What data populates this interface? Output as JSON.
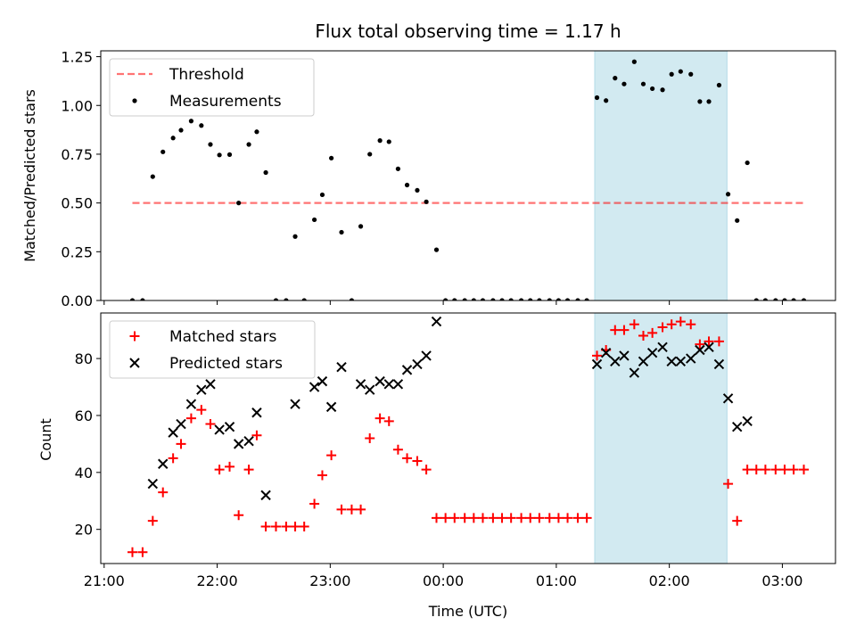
{
  "chart_data": {
    "type": "scatter",
    "title": "Flux total observing time = 1.17 h",
    "xlabel": "Time (UTC)",
    "x_unit": "hours since 21:00 UTC",
    "xlim": [
      -0.03,
      6.47
    ],
    "x_ticks": [
      {
        "value": 0,
        "label": "21:00"
      },
      {
        "value": 1,
        "label": "22:00"
      },
      {
        "value": 2,
        "label": "23:00"
      },
      {
        "value": 3,
        "label": "00:00"
      },
      {
        "value": 4,
        "label": "01:00"
      },
      {
        "value": 5,
        "label": "02:00"
      },
      {
        "value": 6,
        "label": "03:00"
      }
    ],
    "shaded_span": {
      "x0": 4.34,
      "x1": 5.51,
      "color": "#add8e6"
    },
    "panels": [
      {
        "id": "ratio",
        "ylabel": "Matched/Predicted stars",
        "ylim": [
          0,
          1.28
        ],
        "y_ticks": [
          {
            "value": 0,
            "label": "0.00"
          },
          {
            "value": 0.25,
            "label": "0.25"
          },
          {
            "value": 0.5,
            "label": "0.50"
          },
          {
            "value": 0.75,
            "label": "0.75"
          },
          {
            "value": 1.0,
            "label": "1.00"
          },
          {
            "value": 1.25,
            "label": "1.25"
          }
        ],
        "legend": {
          "position": "upper-left",
          "entries": [
            "Threshold",
            "Measurements"
          ]
        },
        "threshold": {
          "name": "Threshold",
          "y": 0.5,
          "x_range": [
            0.25,
            6.2
          ],
          "color": "#ff0000"
        },
        "series": [
          {
            "name": "Measurements",
            "marker": "dot",
            "color": "#000000",
            "points": [
              [
                0.25,
                0
              ],
              [
                0.34,
                0
              ],
              [
                0.43,
                0.635
              ],
              [
                0.52,
                0.762
              ],
              [
                0.61,
                0.833
              ],
              [
                0.68,
                0.873
              ],
              [
                0.77,
                0.92
              ],
              [
                0.86,
                0.897
              ],
              [
                0.94,
                0.8
              ],
              [
                1.02,
                0.746
              ],
              [
                1.11,
                0.748
              ],
              [
                1.19,
                0.5
              ],
              [
                1.28,
                0.8
              ],
              [
                1.35,
                0.865
              ],
              [
                1.43,
                0.656
              ],
              [
                1.52,
                0
              ],
              [
                1.61,
                0
              ],
              [
                1.69,
                0.328
              ],
              [
                1.77,
                0
              ],
              [
                1.86,
                0.414
              ],
              [
                1.93,
                0.542
              ],
              [
                2.01,
                0.73
              ],
              [
                2.1,
                0.35
              ],
              [
                2.19,
                0
              ],
              [
                2.27,
                0.38
              ],
              [
                2.35,
                0.75
              ],
              [
                2.44,
                0.82
              ],
              [
                2.52,
                0.814
              ],
              [
                2.6,
                0.675
              ],
              [
                2.68,
                0.592
              ],
              [
                2.77,
                0.565
              ],
              [
                2.85,
                0.506
              ],
              [
                2.94,
                0.26
              ],
              [
                3.02,
                0
              ],
              [
                3.1,
                0
              ],
              [
                3.19,
                0
              ],
              [
                3.27,
                0
              ],
              [
                3.35,
                0
              ],
              [
                3.44,
                0
              ],
              [
                3.52,
                0
              ],
              [
                3.6,
                0
              ],
              [
                3.69,
                0
              ],
              [
                3.77,
                0
              ],
              [
                3.85,
                0
              ],
              [
                3.94,
                0
              ],
              [
                4.02,
                0
              ],
              [
                4.1,
                0
              ],
              [
                4.19,
                0
              ],
              [
                4.27,
                0
              ],
              [
                4.36,
                1.04
              ],
              [
                4.44,
                1.025
              ],
              [
                4.52,
                1.14
              ],
              [
                4.6,
                1.11
              ],
              [
                4.69,
                1.224
              ],
              [
                4.77,
                1.11
              ],
              [
                4.85,
                1.086
              ],
              [
                4.94,
                1.08
              ],
              [
                5.02,
                1.16
              ],
              [
                5.1,
                1.174
              ],
              [
                5.19,
                1.16
              ],
              [
                5.27,
                1.02
              ],
              [
                5.35,
                1.02
              ],
              [
                5.44,
                1.104
              ],
              [
                5.52,
                0.545
              ],
              [
                5.6,
                0.41
              ],
              [
                5.69,
                0.706
              ],
              [
                5.77,
                0
              ],
              [
                5.85,
                0
              ],
              [
                5.94,
                0
              ],
              [
                6.02,
                0
              ],
              [
                6.1,
                0
              ],
              [
                6.19,
                0
              ]
            ]
          }
        ]
      },
      {
        "id": "counts",
        "ylabel": "Count",
        "ylim": [
          8,
          96
        ],
        "y_ticks": [
          {
            "value": 20,
            "label": "20"
          },
          {
            "value": 40,
            "label": "40"
          },
          {
            "value": 60,
            "label": "60"
          },
          {
            "value": 80,
            "label": "80"
          }
        ],
        "legend": {
          "position": "upper-left",
          "entries": [
            "Matched stars",
            "Predicted stars"
          ]
        },
        "series": [
          {
            "name": "Matched stars",
            "marker": "plus",
            "color": "#ff0000",
            "points": [
              [
                0.25,
                12
              ],
              [
                0.34,
                12
              ],
              [
                0.43,
                23
              ],
              [
                0.52,
                33
              ],
              [
                0.61,
                45
              ],
              [
                0.68,
                50
              ],
              [
                0.77,
                59
              ],
              [
                0.86,
                62
              ],
              [
                0.94,
                57
              ],
              [
                1.02,
                41
              ],
              [
                1.11,
                42
              ],
              [
                1.19,
                25
              ],
              [
                1.28,
                41
              ],
              [
                1.35,
                53
              ],
              [
                1.43,
                21
              ],
              [
                1.52,
                21
              ],
              [
                1.61,
                21
              ],
              [
                1.69,
                21
              ],
              [
                1.77,
                21
              ],
              [
                1.86,
                29
              ],
              [
                1.93,
                39
              ],
              [
                2.01,
                46
              ],
              [
                2.1,
                27
              ],
              [
                2.19,
                27
              ],
              [
                2.27,
                27
              ],
              [
                2.35,
                52
              ],
              [
                2.44,
                59
              ],
              [
                2.52,
                58
              ],
              [
                2.6,
                48
              ],
              [
                2.68,
                45
              ],
              [
                2.77,
                44
              ],
              [
                2.85,
                41
              ],
              [
                2.94,
                24
              ],
              [
                3.02,
                24
              ],
              [
                3.1,
                24
              ],
              [
                3.19,
                24
              ],
              [
                3.27,
                24
              ],
              [
                3.35,
                24
              ],
              [
                3.44,
                24
              ],
              [
                3.52,
                24
              ],
              [
                3.6,
                24
              ],
              [
                3.69,
                24
              ],
              [
                3.77,
                24
              ],
              [
                3.85,
                24
              ],
              [
                3.94,
                24
              ],
              [
                4.02,
                24
              ],
              [
                4.1,
                24
              ],
              [
                4.19,
                24
              ],
              [
                4.27,
                24
              ],
              [
                4.36,
                81
              ],
              [
                4.44,
                83
              ],
              [
                4.52,
                90
              ],
              [
                4.6,
                90
              ],
              [
                4.69,
                92
              ],
              [
                4.77,
                88
              ],
              [
                4.85,
                89
              ],
              [
                4.94,
                91
              ],
              [
                5.02,
                92
              ],
              [
                5.1,
                93
              ],
              [
                5.19,
                92
              ],
              [
                5.27,
                85
              ],
              [
                5.35,
                86
              ],
              [
                5.44,
                86
              ],
              [
                5.52,
                36
              ],
              [
                5.6,
                23
              ],
              [
                5.69,
                41
              ],
              [
                5.77,
                41
              ],
              [
                5.85,
                41
              ],
              [
                5.94,
                41
              ],
              [
                6.02,
                41
              ],
              [
                6.1,
                41
              ],
              [
                6.19,
                41
              ]
            ]
          },
          {
            "name": "Predicted stars",
            "marker": "x",
            "color": "#000000",
            "points": [
              [
                0.43,
                36
              ],
              [
                0.52,
                43
              ],
              [
                0.61,
                54
              ],
              [
                0.68,
                57
              ],
              [
                0.77,
                64
              ],
              [
                0.86,
                69
              ],
              [
                0.94,
                71
              ],
              [
                1.02,
                55
              ],
              [
                1.11,
                56
              ],
              [
                1.19,
                50
              ],
              [
                1.28,
                51
              ],
              [
                1.35,
                61
              ],
              [
                1.43,
                32
              ],
              [
                1.69,
                64
              ],
              [
                1.86,
                70
              ],
              [
                1.93,
                72
              ],
              [
                2.01,
                63
              ],
              [
                2.1,
                77
              ],
              [
                2.27,
                71
              ],
              [
                2.35,
                69
              ],
              [
                2.44,
                72
              ],
              [
                2.52,
                71
              ],
              [
                2.6,
                71
              ],
              [
                2.68,
                76
              ],
              [
                2.77,
                78
              ],
              [
                2.85,
                81
              ],
              [
                2.94,
                93
              ],
              [
                4.36,
                78
              ],
              [
                4.44,
                82
              ],
              [
                4.52,
                79
              ],
              [
                4.6,
                81
              ],
              [
                4.69,
                75
              ],
              [
                4.77,
                79
              ],
              [
                4.85,
                82
              ],
              [
                4.94,
                84
              ],
              [
                5.02,
                79
              ],
              [
                5.1,
                79
              ],
              [
                5.19,
                80
              ],
              [
                5.27,
                83
              ],
              [
                5.35,
                84
              ],
              [
                5.44,
                78
              ],
              [
                5.52,
                66
              ],
              [
                5.6,
                56
              ],
              [
                5.69,
                58
              ]
            ]
          }
        ]
      }
    ]
  }
}
